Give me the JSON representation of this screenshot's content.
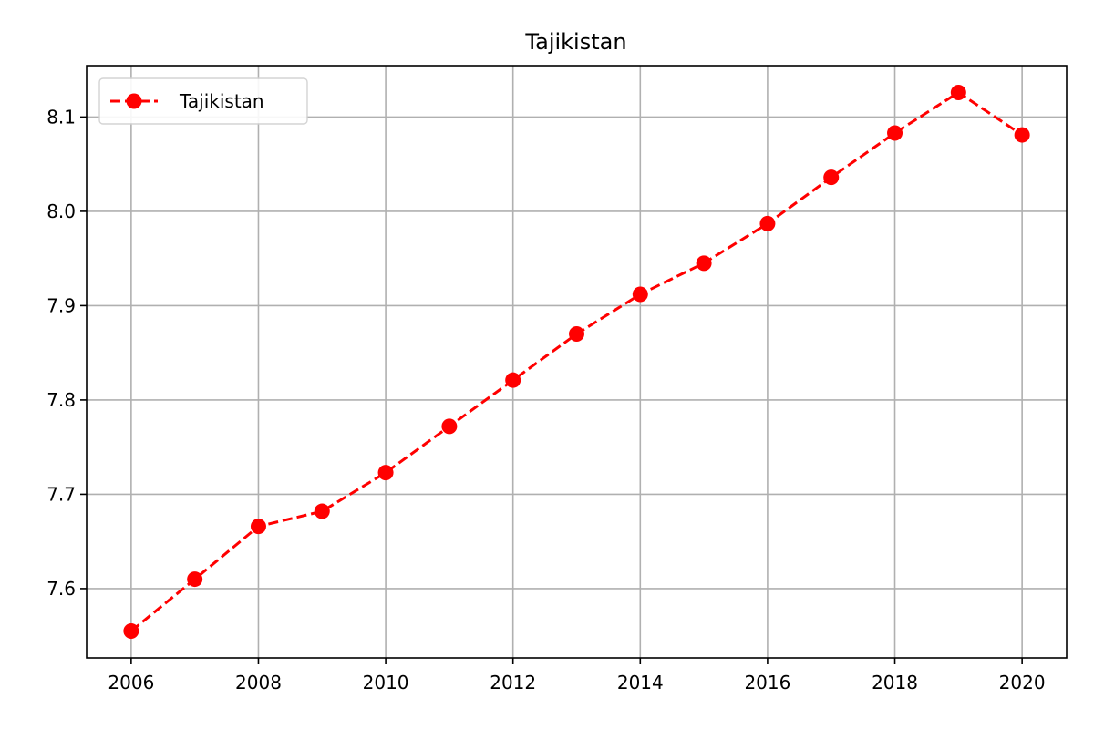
{
  "chart_data": {
    "type": "line",
    "title": "Tajikistan",
    "xlabel": "",
    "ylabel": "",
    "x": [
      2006,
      2007,
      2008,
      2009,
      2010,
      2011,
      2012,
      2013,
      2014,
      2015,
      2016,
      2017,
      2018,
      2019,
      2020
    ],
    "series": [
      {
        "name": "Tajikistan",
        "values": [
          7.555,
          7.61,
          7.666,
          7.682,
          7.723,
          7.772,
          7.821,
          7.87,
          7.912,
          7.945,
          7.987,
          8.036,
          8.083,
          8.126,
          8.081
        ],
        "color": "#ff0000",
        "line_style": "dashed",
        "marker": "circle"
      }
    ],
    "xlim": [
      2005.3,
      2020.7
    ],
    "ylim": [
      7.5265,
      8.1545
    ],
    "xticks": [
      "2006",
      "2008",
      "2010",
      "2012",
      "2014",
      "2016",
      "2018",
      "2020"
    ],
    "yticks": [
      "7.6",
      "7.7",
      "7.8",
      "7.9",
      "8.0",
      "8.1"
    ],
    "grid": true,
    "legend_position": "top-left"
  }
}
